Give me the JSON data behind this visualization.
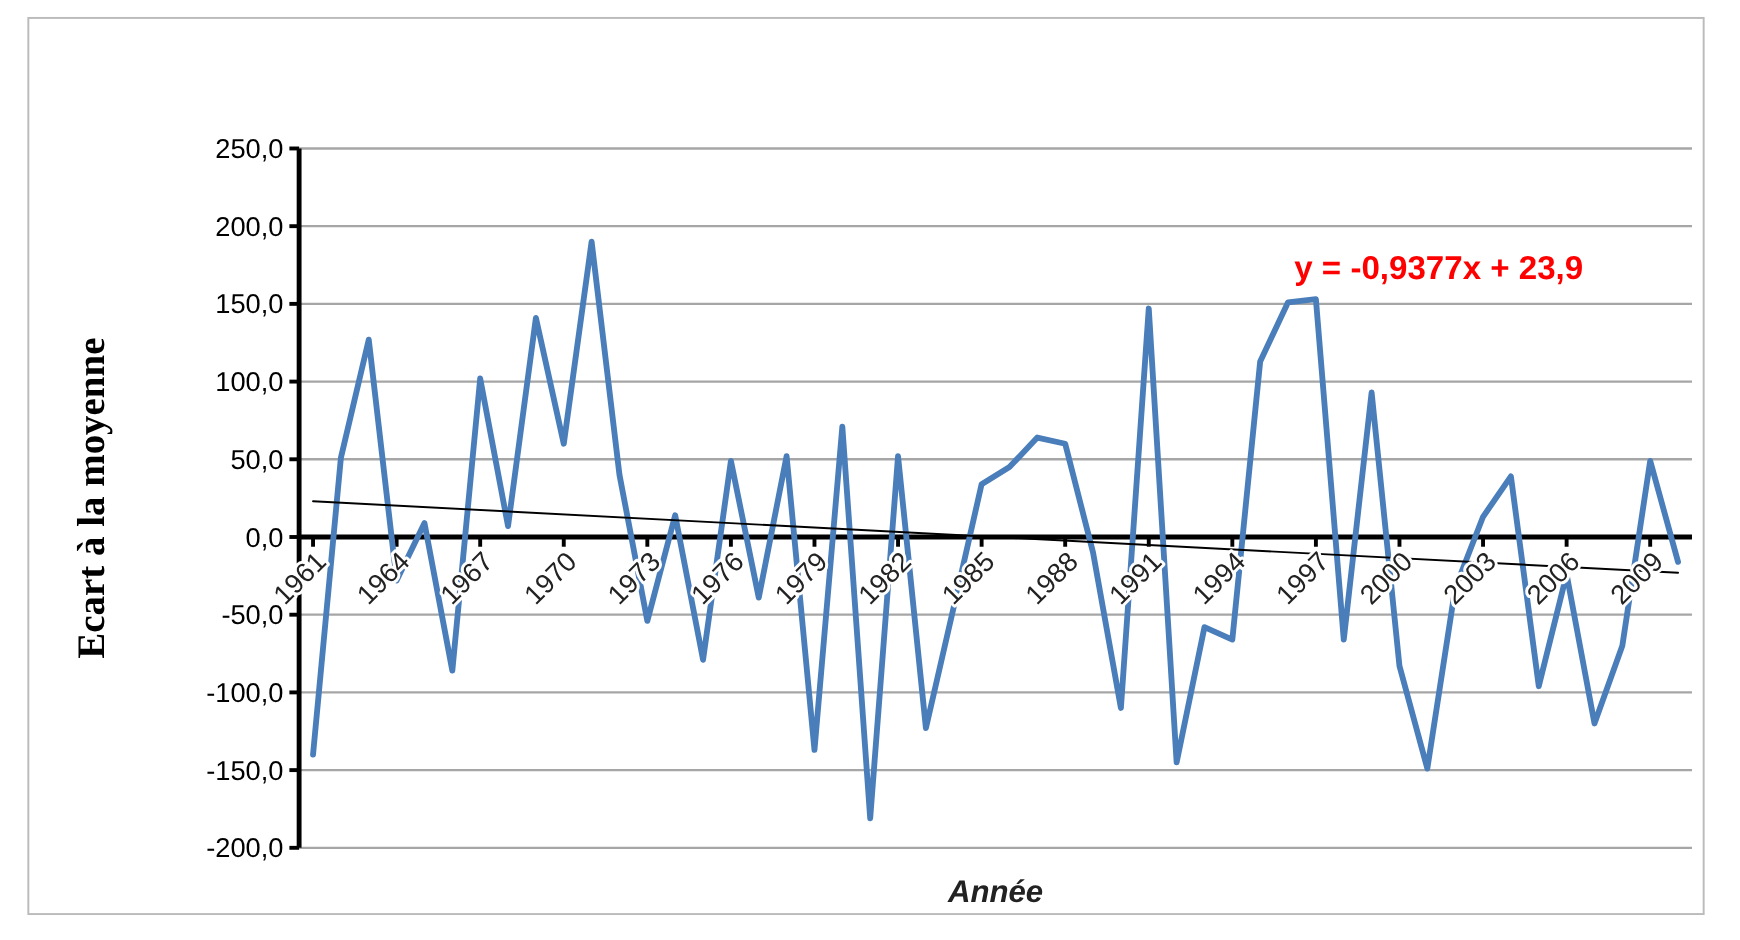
{
  "chart_data": {
    "type": "line",
    "xlabel": "Année",
    "ylabel": "Ecart à la moyenne",
    "x": [
      1961,
      1962,
      1963,
      1964,
      1965,
      1966,
      1967,
      1968,
      1969,
      1970,
      1971,
      1972,
      1973,
      1974,
      1975,
      1976,
      1977,
      1978,
      1979,
      1980,
      1981,
      1982,
      1983,
      1984,
      1985,
      1986,
      1987,
      1988,
      1989,
      1990,
      1991,
      1992,
      1993,
      1994,
      1995,
      1996,
      1997,
      1998,
      1999,
      2000,
      2001,
      2002,
      2003,
      2004,
      2005,
      2006,
      2007,
      2008,
      2009,
      2010
    ],
    "series": [
      {
        "color": "#4a7ebb",
        "values": [
          -140,
          51,
          127,
          -28,
          9,
          -86,
          102,
          7,
          141,
          60,
          190,
          40,
          -54,
          14,
          -79,
          49,
          -39,
          52,
          -137,
          71,
          -181,
          52,
          -123,
          -45,
          34,
          45,
          64,
          60,
          -10,
          -110,
          147,
          -145,
          -58,
          -66,
          113,
          151,
          153,
          -66,
          93,
          -83,
          -149,
          -33,
          13,
          39,
          -96,
          -24,
          -120,
          -70,
          49,
          -16
        ]
      },
      {
        "type": "line",
        "color": "#000000",
        "x": [
          1961,
          2010
        ],
        "values": [
          23,
          -23
        ]
      }
    ],
    "xlim": [
      1960.5,
      2010.5
    ],
    "xticks": [
      1961,
      1964,
      1967,
      1970,
      1973,
      1976,
      1979,
      1982,
      1985,
      1988,
      1991,
      1994,
      1997,
      2000,
      2003,
      2006,
      2009
    ],
    "ylim": [
      -200,
      250
    ],
    "yticks": [
      {
        "value": -200,
        "label": "-200,0"
      },
      {
        "value": -150,
        "label": "-150,0"
      },
      {
        "value": -100,
        "label": "-100,0"
      },
      {
        "value": -50,
        "label": "-50,0"
      },
      {
        "value": 0,
        "label": "0,0"
      },
      {
        "value": 50,
        "label": "50,0"
      },
      {
        "value": 100,
        "label": "100,0"
      },
      {
        "value": 150,
        "label": "150,0"
      },
      {
        "value": 200,
        "label": "200,0"
      },
      {
        "value": 250,
        "label": "250,0"
      }
    ],
    "grid": "y",
    "marker": "none",
    "line_style": "solid",
    "annotations": [
      "y = -0,9377x + 23,9"
    ]
  }
}
